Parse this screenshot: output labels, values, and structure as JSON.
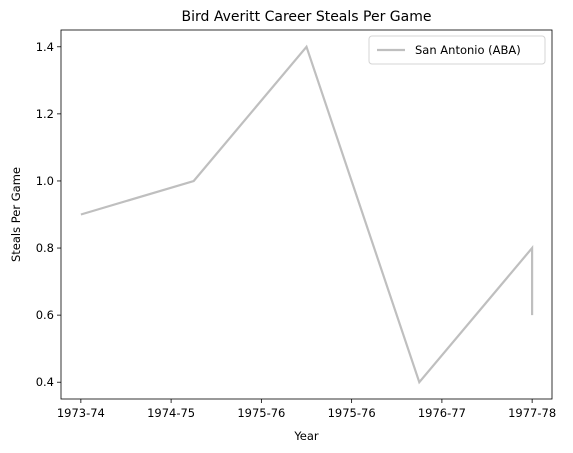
{
  "chart_data": {
    "type": "line",
    "title": "Bird Averitt Career Steals Per Game",
    "xlabel": "Year",
    "ylabel": "Steals Per Game",
    "x_tick_labels": [
      "1973-74",
      "1974-75",
      "1975-76",
      "1975-76",
      "1976-77",
      "1977-78"
    ],
    "x_tick_positions": [
      0,
      1,
      2,
      3,
      4,
      5
    ],
    "xlim": [
      -0.22,
      5.22
    ],
    "ylim": [
      0.35,
      1.45
    ],
    "y_ticks": [
      0.4,
      0.6,
      0.8,
      1.0,
      1.2,
      1.4
    ],
    "y_tick_labels": [
      "0.4",
      "0.6",
      "0.8",
      "1.0",
      "1.2",
      "1.4"
    ],
    "grid": false,
    "legend_position": "top-right",
    "series": [
      {
        "name": "San Antonio (ABA)",
        "color": "#bfbfbf",
        "x": [
          0,
          1.25,
          2.5,
          3.75,
          5,
          5
        ],
        "y": [
          0.9,
          1.0,
          1.4,
          0.4,
          0.8,
          0.6
        ]
      }
    ]
  }
}
